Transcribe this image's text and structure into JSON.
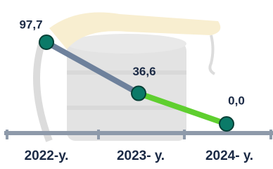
{
  "chart_data": {
    "type": "line",
    "categories": [
      "2022-у.",
      "2023- у.",
      "2024- у."
    ],
    "values": [
      97.7,
      36.6,
      0.0
    ],
    "value_labels": [
      "97,7",
      "36,6",
      "0,0"
    ],
    "segment_colors": [
      "#6e819c",
      "#5fcf2f"
    ],
    "marker_color": "#0b7a68"
  }
}
